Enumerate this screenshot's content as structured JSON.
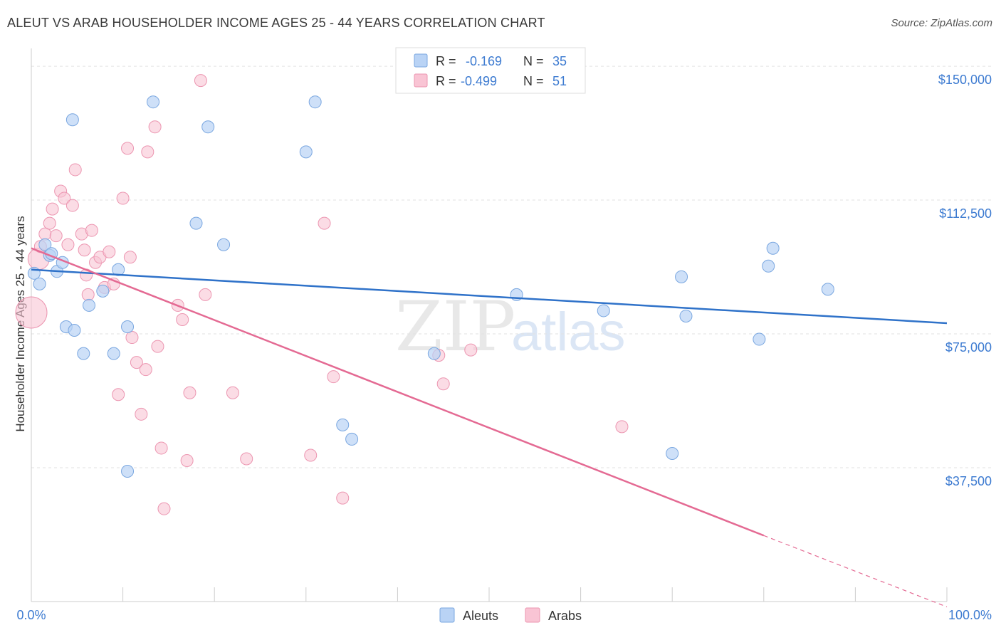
{
  "title": "ALEUT VS ARAB HOUSEHOLDER INCOME AGES 25 - 44 YEARS CORRELATION CHART",
  "source": "Source: ZipAtlas.com",
  "watermark": {
    "zip": "ZIP",
    "atlas": "atlas"
  },
  "legend_top": [
    {
      "r_label": "R =",
      "r_value": "-0.169",
      "n_label": "N =",
      "n_value": "35"
    },
    {
      "r_label": "R =",
      "r_value": "-0.499",
      "n_label": "N =",
      "n_value": "51"
    }
  ],
  "colors": {
    "aleut_fill": "#b9d3f5",
    "aleut_stroke": "#7aa7e0",
    "aleut_line": "#2f72c9",
    "arab_fill": "#f9c4d4",
    "arab_stroke": "#ec96b1",
    "arab_line": "#e46a93",
    "axis_text": "#3d7bd1",
    "grid": "#e2e2e2"
  },
  "chart_data": {
    "type": "scatter",
    "xlabel": "",
    "ylabel": "Householder Income Ages 25 - 44 years",
    "xlim": [
      0,
      100
    ],
    "ylim": [
      0,
      155000
    ],
    "x_tick_labels": [
      "0.0%",
      "100.0%"
    ],
    "y_ticks": [
      37500,
      75000,
      112500,
      150000
    ],
    "y_tick_labels": [
      "$37,500",
      "$75,000",
      "$112,500",
      "$150,000"
    ],
    "grid": "horizontal dashed",
    "legend": "top-center and bottom-center",
    "series": [
      {
        "name": "Aleuts",
        "trend": {
          "x": [
            0,
            100
          ],
          "y": [
            93000,
            78000
          ]
        },
        "points": [
          {
            "x": 0.3,
            "y": 92000
          },
          {
            "x": 0.9,
            "y": 89000
          },
          {
            "x": 1.5,
            "y": 100000
          },
          {
            "x": 2.0,
            "y": 97000
          },
          {
            "x": 2.2,
            "y": 97500
          },
          {
            "x": 2.8,
            "y": 92500
          },
          {
            "x": 3.4,
            "y": 95000
          },
          {
            "x": 3.8,
            "y": 77000
          },
          {
            "x": 4.7,
            "y": 76000
          },
          {
            "x": 4.5,
            "y": 135000
          },
          {
            "x": 5.7,
            "y": 69500
          },
          {
            "x": 6.3,
            "y": 83000
          },
          {
            "x": 7.8,
            "y": 87000
          },
          {
            "x": 9.0,
            "y": 69500
          },
          {
            "x": 9.5,
            "y": 93000
          },
          {
            "x": 10.5,
            "y": 77000
          },
          {
            "x": 10.5,
            "y": 36500
          },
          {
            "x": 13.3,
            "y": 140000
          },
          {
            "x": 18.0,
            "y": 106000
          },
          {
            "x": 19.3,
            "y": 133000
          },
          {
            "x": 21.0,
            "y": 100000
          },
          {
            "x": 30.0,
            "y": 126000
          },
          {
            "x": 31.0,
            "y": 140000
          },
          {
            "x": 34.0,
            "y": 49500
          },
          {
            "x": 35.0,
            "y": 45500
          },
          {
            "x": 44.0,
            "y": 69500
          },
          {
            "x": 53.0,
            "y": 86000
          },
          {
            "x": 62.5,
            "y": 81500
          },
          {
            "x": 70.0,
            "y": 41500
          },
          {
            "x": 71.0,
            "y": 91000
          },
          {
            "x": 71.5,
            "y": 80000
          },
          {
            "x": 79.5,
            "y": 73500
          },
          {
            "x": 80.5,
            "y": 94000
          },
          {
            "x": 81.0,
            "y": 99000
          },
          {
            "x": 87.0,
            "y": 87500
          }
        ]
      },
      {
        "name": "Arabs",
        "trend": {
          "x": [
            0,
            80
          ],
          "y": [
            99000,
            18500
          ]
        },
        "trend_dashed": {
          "x": [
            80,
            100
          ],
          "y": [
            18500,
            -1500
          ]
        },
        "points": [
          {
            "x": 0.0,
            "y": 81000
          },
          {
            "x": 0.8,
            "y": 96000
          },
          {
            "x": 1.5,
            "y": 103000
          },
          {
            "x": 2.0,
            "y": 106000
          },
          {
            "x": 2.3,
            "y": 110000
          },
          {
            "x": 2.7,
            "y": 102500
          },
          {
            "x": 3.2,
            "y": 115000
          },
          {
            "x": 3.6,
            "y": 113000
          },
          {
            "x": 4.0,
            "y": 100000
          },
          {
            "x": 4.5,
            "y": 111000
          },
          {
            "x": 4.8,
            "y": 121000
          },
          {
            "x": 5.5,
            "y": 103000
          },
          {
            "x": 5.8,
            "y": 98500
          },
          {
            "x": 6.2,
            "y": 86000
          },
          {
            "x": 6.6,
            "y": 104000
          },
          {
            "x": 7.0,
            "y": 95000
          },
          {
            "x": 7.5,
            "y": 96500
          },
          {
            "x": 8.0,
            "y": 88000
          },
          {
            "x": 8.5,
            "y": 98000
          },
          {
            "x": 9.0,
            "y": 89000
          },
          {
            "x": 9.5,
            "y": 58000
          },
          {
            "x": 10.0,
            "y": 113000
          },
          {
            "x": 10.5,
            "y": 127000
          },
          {
            "x": 10.8,
            "y": 96500
          },
          {
            "x": 11.0,
            "y": 74000
          },
          {
            "x": 11.5,
            "y": 67000
          },
          {
            "x": 12.0,
            "y": 52500
          },
          {
            "x": 12.5,
            "y": 65000
          },
          {
            "x": 12.7,
            "y": 126000
          },
          {
            "x": 13.5,
            "y": 133000
          },
          {
            "x": 13.8,
            "y": 71500
          },
          {
            "x": 14.2,
            "y": 43000
          },
          {
            "x": 14.5,
            "y": 26000
          },
          {
            "x": 16.0,
            "y": 83000
          },
          {
            "x": 16.5,
            "y": 79000
          },
          {
            "x": 17.0,
            "y": 39500
          },
          {
            "x": 17.3,
            "y": 58500
          },
          {
            "x": 18.5,
            "y": 146000
          },
          {
            "x": 19.0,
            "y": 86000
          },
          {
            "x": 22.0,
            "y": 58500
          },
          {
            "x": 23.5,
            "y": 40000
          },
          {
            "x": 30.5,
            "y": 41000
          },
          {
            "x": 32.0,
            "y": 106000
          },
          {
            "x": 33.0,
            "y": 63000
          },
          {
            "x": 34.0,
            "y": 29000
          },
          {
            "x": 44.5,
            "y": 69000
          },
          {
            "x": 45.0,
            "y": 61000
          },
          {
            "x": 48.0,
            "y": 70500
          },
          {
            "x": 64.5,
            "y": 49000
          },
          {
            "x": 1.0,
            "y": 99500
          },
          {
            "x": 6.0,
            "y": 91500
          }
        ]
      }
    ]
  },
  "bottom_legend": [
    {
      "label": "Aleuts"
    },
    {
      "label": "Arabs"
    }
  ]
}
